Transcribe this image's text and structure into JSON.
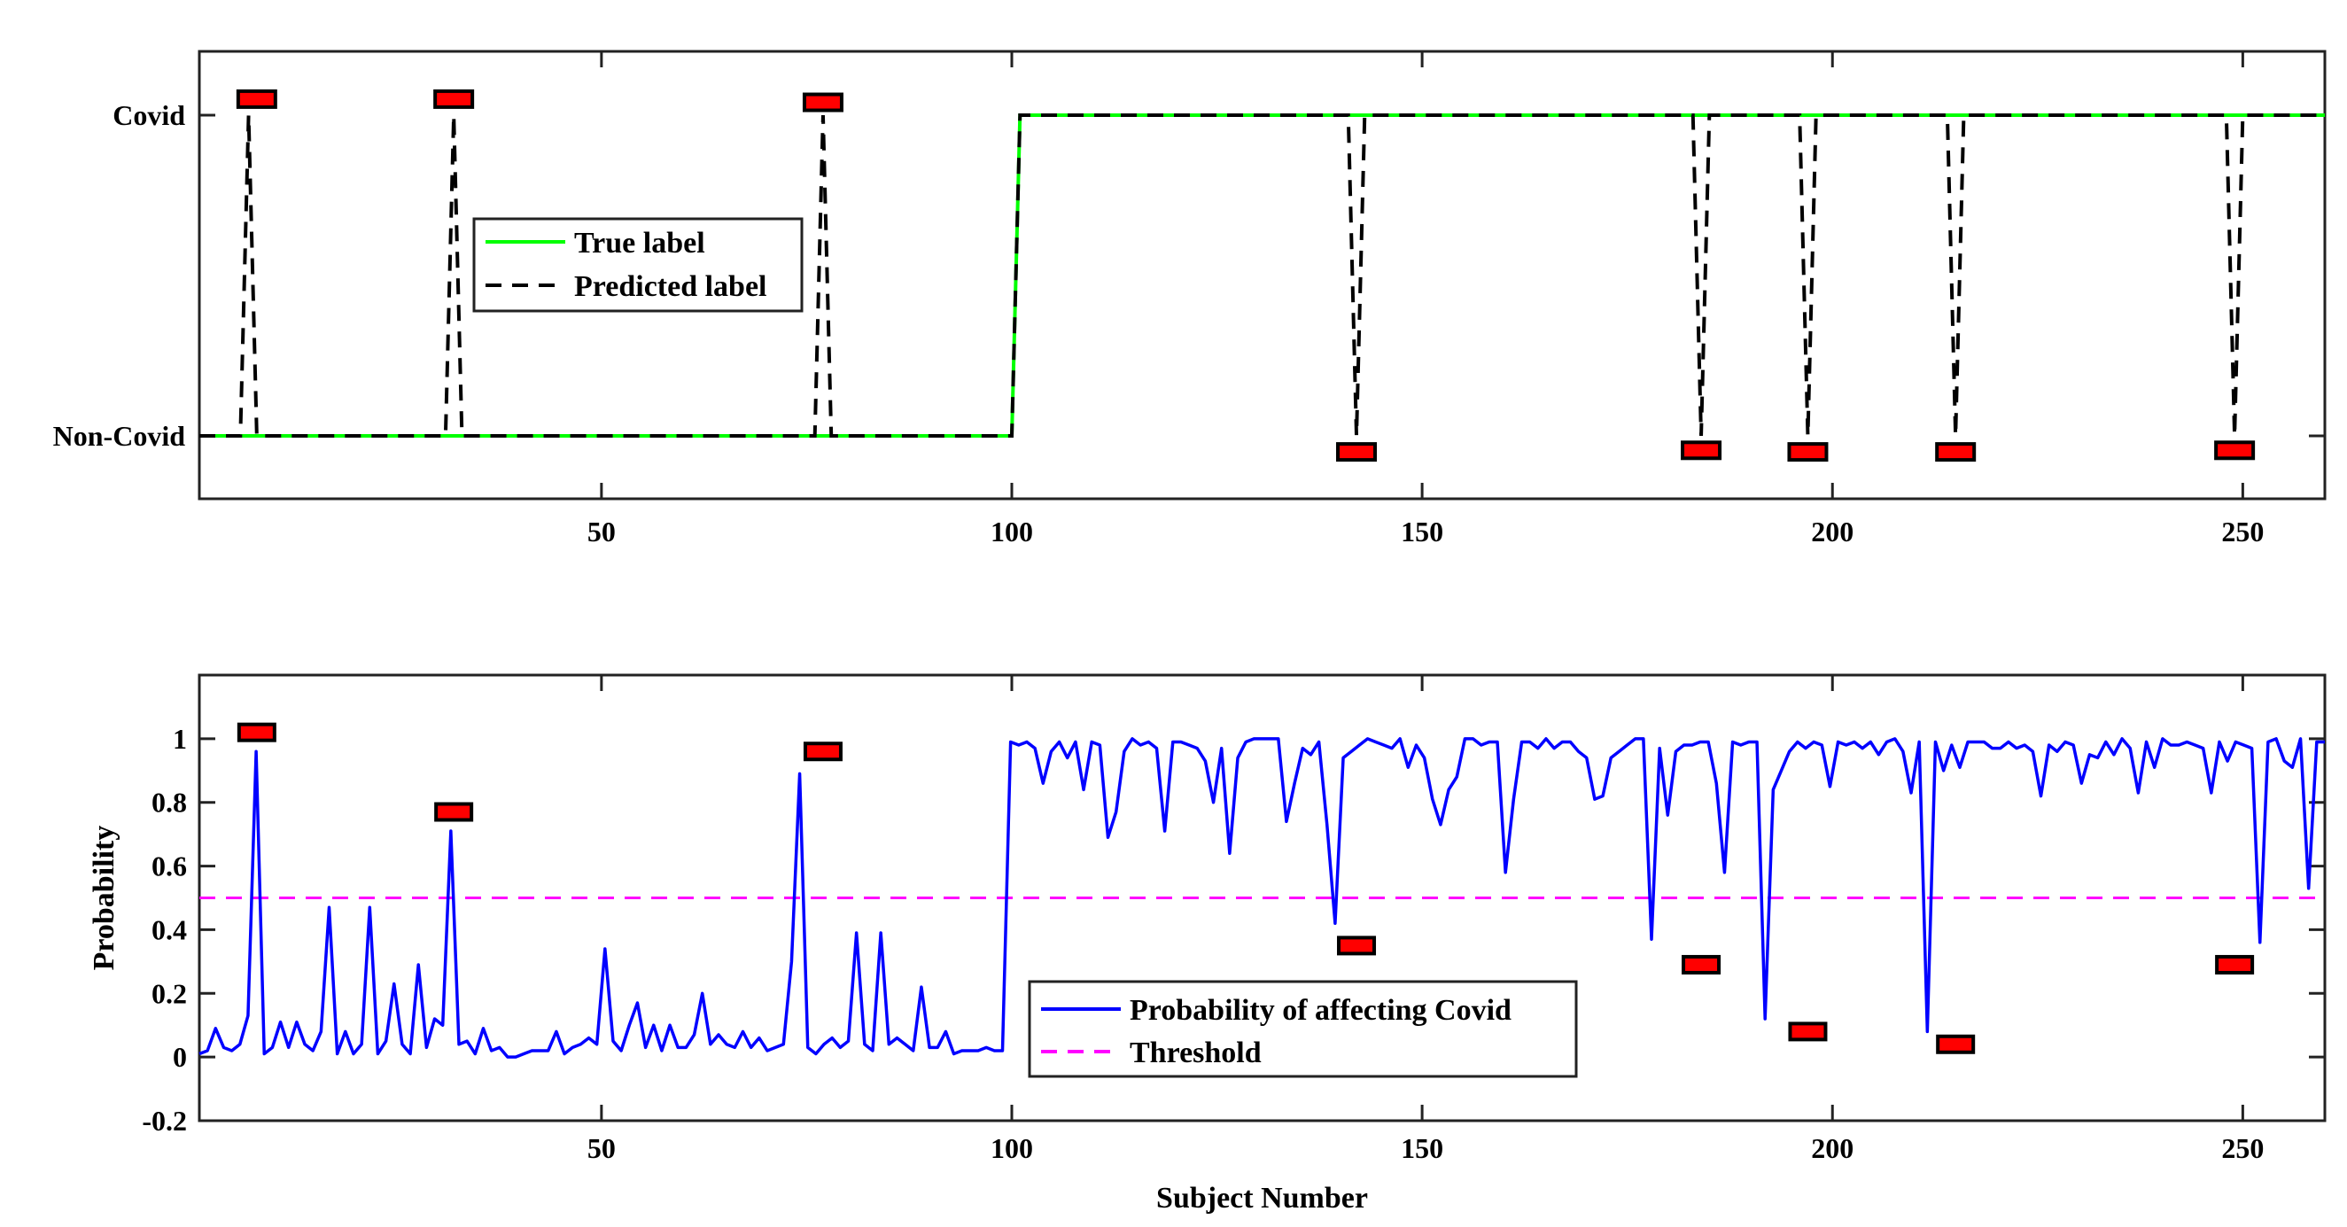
{
  "chart_data": [
    {
      "type": "line",
      "x_range": [
        1,
        260
      ],
      "x_ticks": [
        50,
        100,
        150,
        200,
        250
      ],
      "y_ticks": [
        {
          "value": 1,
          "label": "Covid"
        },
        {
          "value": 0,
          "label": "Non-Covid"
        }
      ],
      "ylim": [
        -0.2,
        1.2
      ],
      "legend": {
        "position": "upper-left",
        "entries": [
          {
            "label": "True label",
            "color": "#00ff00",
            "style": "solid"
          },
          {
            "label": "Predicted label",
            "color": "#000000",
            "style": "dashed"
          }
        ]
      },
      "true_label": [
        [
          1,
          0
        ],
        [
          100,
          0
        ],
        [
          101,
          1
        ],
        [
          260,
          1
        ]
      ],
      "predicted_label": [
        [
          1,
          0
        ],
        [
          6,
          0
        ],
        [
          7,
          1
        ],
        [
          8,
          0
        ],
        [
          31,
          0
        ],
        [
          32,
          1
        ],
        [
          33,
          0
        ],
        [
          76,
          0
        ],
        [
          77,
          1
        ],
        [
          78,
          0
        ],
        [
          100,
          0
        ],
        [
          101,
          1
        ],
        [
          141,
          1
        ],
        [
          142,
          0
        ],
        [
          143,
          1
        ],
        [
          183,
          1
        ],
        [
          184,
          0
        ],
        [
          185,
          1
        ],
        [
          196,
          1
        ],
        [
          197,
          0
        ],
        [
          198,
          1
        ],
        [
          214,
          1
        ],
        [
          215,
          0
        ],
        [
          216,
          1
        ],
        [
          248,
          1
        ],
        [
          249,
          0
        ],
        [
          250,
          1
        ],
        [
          260,
          1
        ]
      ],
      "misclassified_markers": [
        {
          "x": 8,
          "y": 1.05
        },
        {
          "x": 32,
          "y": 1.05
        },
        {
          "x": 77,
          "y": 1.04
        },
        {
          "x": 142,
          "y": -0.05
        },
        {
          "x": 184,
          "y": -0.045
        },
        {
          "x": 197,
          "y": -0.05
        },
        {
          "x": 215,
          "y": -0.05
        },
        {
          "x": 249,
          "y": -0.045
        }
      ],
      "marker_color": "#ff0000"
    },
    {
      "type": "line",
      "xlabel": "Subject Number",
      "ylabel": "Probability",
      "x_range": [
        1,
        260
      ],
      "x_ticks": [
        50,
        100,
        150,
        200,
        250
      ],
      "ylim": [
        -0.2,
        1.2
      ],
      "y_ticks": [
        1,
        0.8,
        0.6,
        0.4,
        0.2,
        0,
        -0.2
      ],
      "y_tick_labels": [
        "1",
        "0.8",
        "0.6",
        "0.4",
        "0.2",
        "0",
        "-0.2"
      ],
      "threshold": 0.5,
      "legend": {
        "position": "lower-center",
        "entries": [
          {
            "label": "Probability of affecting Covid",
            "color": "#0000ff",
            "style": "solid"
          },
          {
            "label": "Threshold",
            "color": "#ff00ff",
            "style": "dashed"
          }
        ]
      },
      "probability_first100": [
        0.01,
        0.02,
        0.09,
        0.03,
        0.02,
        0.04,
        0.13,
        0.96,
        0.01,
        0.03,
        0.11,
        0.03,
        0.11,
        0.04,
        0.02,
        0.08,
        0.47,
        0.01,
        0.08,
        0.01,
        0.04,
        0.47,
        0.01,
        0.05,
        0.23,
        0.04,
        0.01,
        0.29,
        0.03,
        0.12,
        0.1,
        0.71,
        0.04,
        0.05,
        0.01,
        0.09,
        0.02,
        0.03,
        0.0,
        0.0,
        0.01,
        0.02,
        0.02,
        0.02,
        0.08,
        0.01,
        0.03,
        0.04,
        0.06,
        0.04,
        0.34,
        0.05,
        0.02,
        0.1,
        0.17,
        0.03,
        0.1,
        0.02,
        0.1,
        0.03,
        0.03,
        0.07,
        0.2,
        0.04,
        0.07,
        0.04,
        0.03,
        0.08,
        0.03,
        0.06,
        0.02,
        0.03,
        0.04,
        0.3,
        0.89,
        0.03,
        0.01,
        0.04,
        0.06,
        0.03,
        0.05,
        0.39,
        0.04,
        0.02,
        0.39,
        0.04,
        0.06,
        0.04,
        0.02,
        0.22,
        0.03,
        0.03,
        0.08,
        0.01,
        0.02,
        0.02,
        0.02,
        0.03,
        0.02,
        0.02
      ],
      "probability_last160": [
        0.99,
        0.98,
        0.99,
        0.97,
        0.86,
        0.96,
        0.99,
        0.94,
        0.99,
        0.84,
        0.99,
        0.98,
        0.69,
        0.77,
        0.96,
        1.0,
        0.98,
        0.99,
        0.97,
        0.71,
        0.99,
        0.99,
        0.98,
        0.97,
        0.93,
        0.8,
        0.97,
        0.64,
        0.94,
        0.99,
        1.0,
        1.0,
        1.0,
        1.0,
        0.74,
        0.86,
        0.97,
        0.95,
        0.99,
        0.73,
        0.42,
        0.94,
        0.96,
        0.98,
        1.0,
        0.99,
        0.98,
        0.97,
        1.0,
        0.91,
        0.98,
        0.94,
        0.81,
        0.73,
        0.84,
        0.88,
        1.0,
        1.0,
        0.98,
        0.99,
        0.99,
        0.58,
        0.81,
        0.99,
        0.99,
        0.97,
        1.0,
        0.97,
        0.99,
        0.99,
        0.96,
        0.94,
        0.81,
        0.82,
        0.94,
        0.96,
        0.98,
        1.0,
        1.0,
        0.37,
        0.97,
        0.76,
        0.96,
        0.98,
        0.98,
        0.99,
        0.99,
        0.86,
        0.58,
        0.99,
        0.98,
        0.99,
        0.99,
        0.12,
        0.84,
        0.9,
        0.96,
        0.99,
        0.97,
        0.99,
        0.98,
        0.85,
        0.99,
        0.98,
        0.99,
        0.97,
        0.99,
        0.95,
        0.99,
        1.0,
        0.96,
        0.83,
        0.99,
        0.08,
        0.99,
        0.9,
        0.98,
        0.91,
        0.99,
        0.99,
        0.99,
        0.97,
        0.97,
        0.99,
        0.97,
        0.98,
        0.96,
        0.82,
        0.98,
        0.96,
        0.99,
        0.98,
        0.86,
        0.95,
        0.94,
        0.99,
        0.95,
        1.0,
        0.97,
        0.83,
        0.99,
        0.91,
        1.0,
        0.98,
        0.98,
        0.99,
        0.98,
        0.97,
        0.83,
        0.99,
        0.93,
        0.99,
        0.98,
        0.97,
        0.36,
        0.99,
        1.0,
        0.93,
        0.91,
        1.0,
        0.53
      ],
      "probability_tail": [
        0.99,
        0.99
      ],
      "misclassified_markers": [
        {
          "x": 8,
          "y": 1.02
        },
        {
          "x": 32,
          "y": 0.77
        },
        {
          "x": 77,
          "y": 0.96
        },
        {
          "x": 142,
          "y": 0.35
        },
        {
          "x": 184,
          "y": 0.29
        },
        {
          "x": 197,
          "y": 0.08
        },
        {
          "x": 215,
          "y": 0.04
        },
        {
          "x": 249,
          "y": 0.29
        }
      ],
      "marker_color": "#ff0000"
    }
  ]
}
